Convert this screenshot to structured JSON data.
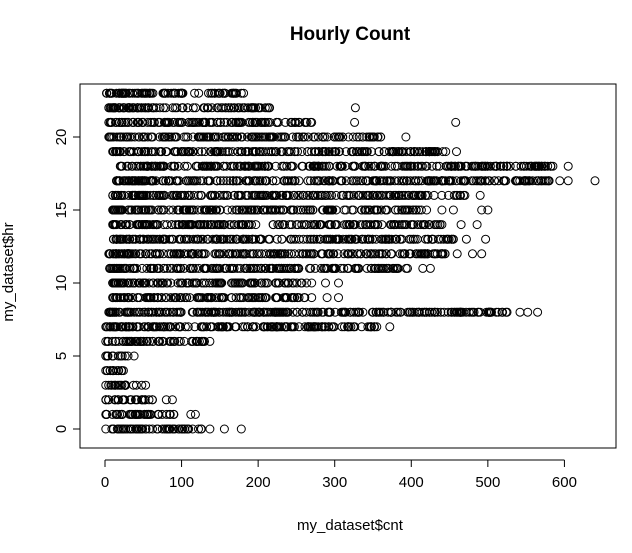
{
  "chart_data": {
    "type": "scatter",
    "title": "Hourly Count",
    "xlabel": "my_dataset$cnt",
    "ylabel": "my_dataset$hr",
    "xlim": [
      0,
      650
    ],
    "ylim": [
      0,
      23
    ],
    "x_ticks": [
      0,
      100,
      200,
      300,
      400,
      500,
      600
    ],
    "y_ticks": [
      0,
      5,
      10,
      15,
      20
    ],
    "marker": "open-circle",
    "grid": false,
    "rows": [
      {
        "hr": 0,
        "cnt_min": 1,
        "cnt_max": 126,
        "outliers": [
          137,
          156,
          178
        ]
      },
      {
        "hr": 1,
        "cnt_min": 1,
        "cnt_max": 90,
        "outliers": [
          112,
          118
        ]
      },
      {
        "hr": 2,
        "cnt_min": 1,
        "cnt_max": 62,
        "outliers": [
          80,
          88
        ]
      },
      {
        "hr": 3,
        "cnt_min": 1,
        "cnt_max": 41,
        "outliers": [
          48,
          53
        ]
      },
      {
        "hr": 4,
        "cnt_min": 1,
        "cnt_max": 22,
        "outliers": [
          24
        ]
      },
      {
        "hr": 5,
        "cnt_min": 1,
        "cnt_max": 30,
        "outliers": [
          38
        ]
      },
      {
        "hr": 6,
        "cnt_min": 1,
        "cnt_max": 130,
        "outliers": [
          137
        ]
      },
      {
        "hr": 7,
        "cnt_min": 1,
        "cnt_max": 355,
        "outliers": [
          372
        ]
      },
      {
        "hr": 8,
        "cnt_min": 5,
        "cnt_max": 525,
        "outliers": [
          542,
          552,
          565
        ]
      },
      {
        "hr": 9,
        "cnt_min": 10,
        "cnt_max": 270,
        "outliers": [
          290,
          305
        ]
      },
      {
        "hr": 10,
        "cnt_min": 10,
        "cnt_max": 270,
        "outliers": [
          288,
          305
        ]
      },
      {
        "hr": 11,
        "cnt_min": 6,
        "cnt_max": 395,
        "outliers": [
          415,
          425
        ]
      },
      {
        "hr": 12,
        "cnt_min": 5,
        "cnt_max": 460,
        "outliers": [
          480,
          492
        ]
      },
      {
        "hr": 13,
        "cnt_min": 11,
        "cnt_max": 455,
        "outliers": [
          472,
          497
        ]
      },
      {
        "hr": 14,
        "cnt_min": 10,
        "cnt_max": 440,
        "outliers": [
          465,
          486
        ]
      },
      {
        "hr": 15,
        "cnt_min": 10,
        "cnt_max": 420,
        "outliers": [
          440,
          455,
          492,
          500
        ]
      },
      {
        "hr": 16,
        "cnt_min": 10,
        "cnt_max": 470,
        "outliers": [
          490
        ]
      },
      {
        "hr": 17,
        "cnt_min": 15,
        "cnt_max": 580,
        "outliers": [
          594,
          605,
          640
        ]
      },
      {
        "hr": 18,
        "cnt_min": 20,
        "cnt_max": 585,
        "outliers": [
          605
        ]
      },
      {
        "hr": 19,
        "cnt_min": 10,
        "cnt_max": 445,
        "outliers": [
          459
        ]
      },
      {
        "hr": 20,
        "cnt_min": 5,
        "cnt_max": 360,
        "outliers": [
          393
        ]
      },
      {
        "hr": 21,
        "cnt_min": 5,
        "cnt_max": 270,
        "outliers": [
          326,
          458
        ]
      },
      {
        "hr": 22,
        "cnt_min": 5,
        "cnt_max": 215,
        "outliers": [
          327
        ]
      },
      {
        "hr": 23,
        "cnt_min": 2,
        "cnt_max": 178,
        "outliers": [
          181
        ]
      }
    ]
  }
}
